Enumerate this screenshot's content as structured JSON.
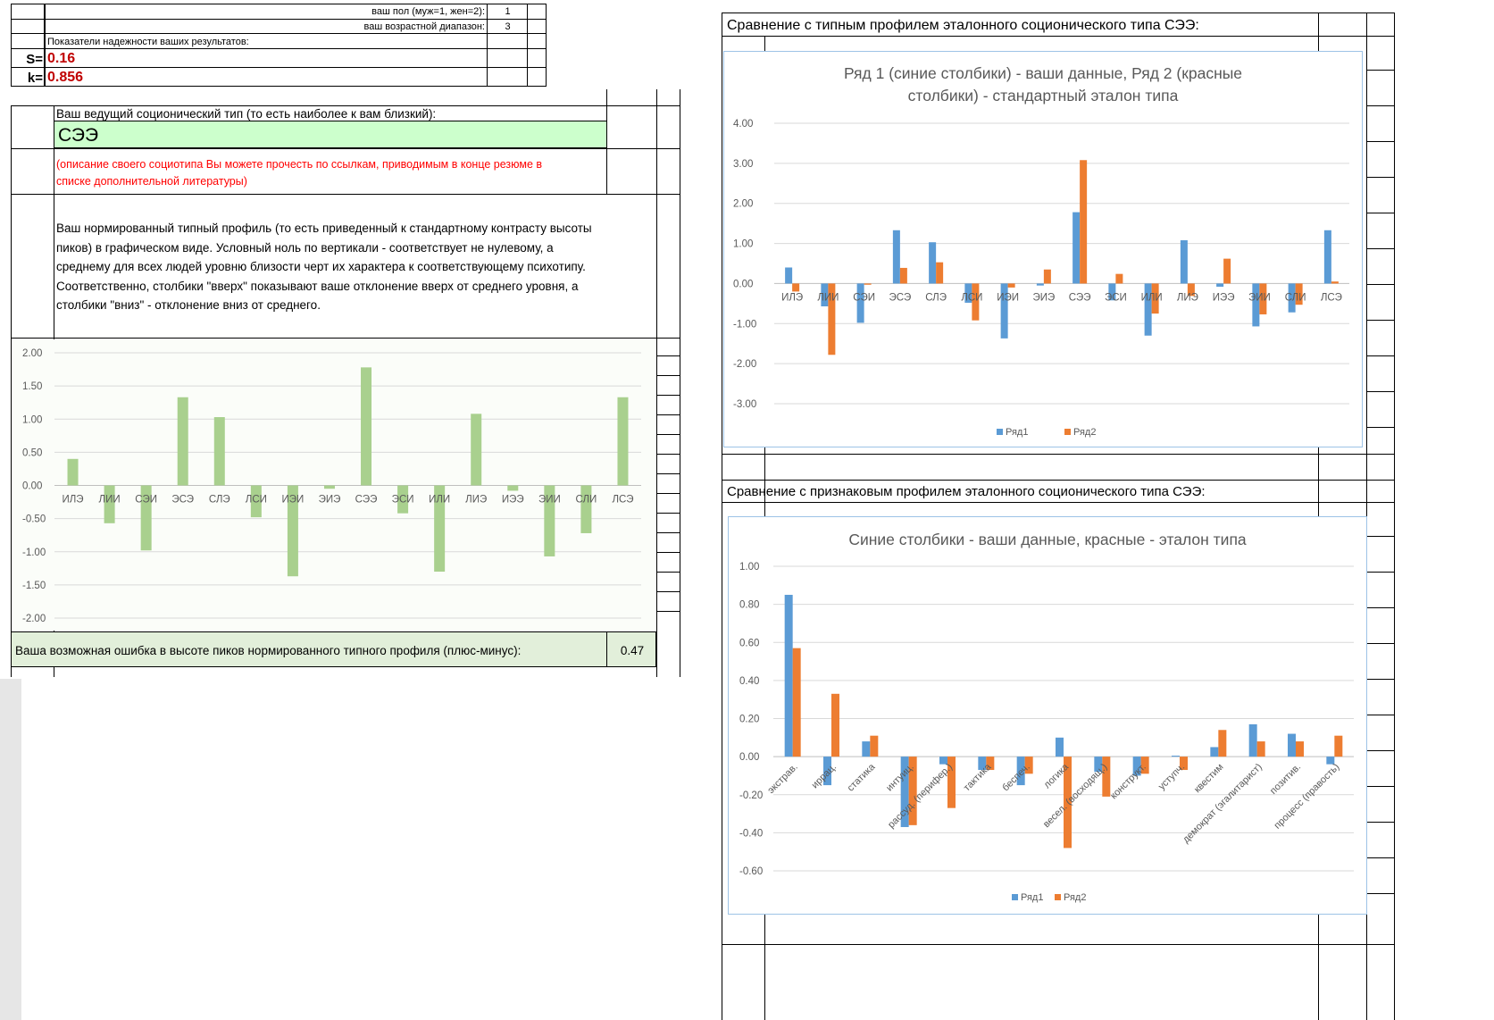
{
  "left_sheet": {
    "gender_label": "ваш пол (муж=1, жен=2):",
    "gender_value": "1",
    "age_label": "ваш возрастной диапазон:",
    "age_value": "3",
    "reliability_heading": "Показатели надежности ваших результатов:",
    "s_label": "S=",
    "s_value": "0.16",
    "k_label": "k=",
    "k_value": "0.856",
    "leading_type_label": "Ваш ведущий соционический тип (то есть наиболее к вам близкий):",
    "leading_type_value": "СЭЭ",
    "description_note_line1": "(описание своего социотипа Вы можете прочесть по ссылкам, приводимым в конце резюме в",
    "description_note_line2": "списке дополнительной литературы)",
    "profile_text": [
      "Ваш нормированный типный профиль (то есть приведенный к стандартному контрасту высоты",
      "пиков) в графическом виде. Условный ноль по вертикали - соответствует не нулевому, а",
      "среднему для всех людей уровню близости черт их характера к соответствующему психотипу.",
      "Соответственно, столбики \"вверх\" показывают ваше отклонение вверх от среднего уровня, а",
      "столбики \"вниз\" - отклонение вниз от среднего."
    ],
    "error_label": "Ваша возможная ошибка в высоте пиков нормированного типного профиля (плюс-минус):",
    "error_value": "0.47"
  },
  "right_sheet": {
    "typical_heading": "Сравнение с типным профилем эталонного соционического типа СЭЭ:",
    "feature_heading": "Сравнение с признаковым профилем эталонного соционического типа СЭЭ:"
  },
  "colors": {
    "green_bar": "#a9d08e",
    "blue": "#5b9bd5",
    "orange": "#ed7d31",
    "red_value": "#c00000",
    "red_note": "#ff0000",
    "type_fill": "#ccffcc",
    "error_fill": "#e2efda",
    "chart_border": "#9dc3e6"
  },
  "chart_data": [
    {
      "type": "bar",
      "title": "",
      "categories": [
        "ИЛЭ",
        "ЛИИ",
        "СЭИ",
        "ЭСЭ",
        "СЛЭ",
        "ЛСИ",
        "ИЭИ",
        "ЭИЭ",
        "СЭЭ",
        "ЭСИ",
        "ИЛИ",
        "ЛИЭ",
        "ИЭЭ",
        "ЭИИ",
        "СЛИ",
        "ЛСЭ"
      ],
      "series": [
        {
          "values": [
            0.4,
            -0.57,
            -0.98,
            1.33,
            1.03,
            -0.48,
            -1.37,
            -0.05,
            1.78,
            -0.42,
            -1.3,
            1.08,
            -0.08,
            -1.07,
            -0.72,
            1.33
          ]
        }
      ],
      "yticks": [
        "2.00",
        "1.50",
        "1.00",
        "0.50",
        "0.00",
        "-0.50",
        "-1.00",
        "-1.50",
        "-2.00"
      ],
      "ylim": [
        -2,
        2
      ],
      "grid": true,
      "legend": "none"
    },
    {
      "type": "bar",
      "title": "Ряд 1 (синие столбики) - ваши данные, Ряд 2 (красные столбики) - стандартный эталон типа",
      "title_lines": [
        "Ряд 1 (синие столбики) - ваши данные, Ряд 2 (красные",
        "столбики) - стандартный эталон типа"
      ],
      "categories": [
        "ИЛЭ",
        "ЛИИ",
        "СЭИ",
        "ЭСЭ",
        "СЛЭ",
        "ЛСИ",
        "ИЭИ",
        "ЭИЭ",
        "СЭЭ",
        "ЭСИ",
        "ИЛИ",
        "ЛИЭ",
        "ИЭЭ",
        "ЭИИ",
        "СЛИ",
        "ЛСЭ"
      ],
      "series": [
        {
          "name": "Ряд1",
          "values": [
            0.4,
            -0.57,
            -0.98,
            1.33,
            1.03,
            -0.48,
            -1.37,
            -0.05,
            1.78,
            -0.42,
            -1.3,
            1.08,
            -0.08,
            -1.07,
            -0.72,
            1.33
          ]
        },
        {
          "name": "Ряд2",
          "values": [
            -0.2,
            -1.78,
            -0.03,
            0.39,
            0.53,
            -0.92,
            -0.1,
            0.35,
            3.08,
            0.24,
            -0.75,
            -0.31,
            0.62,
            -0.77,
            -0.53,
            0.05
          ]
        }
      ],
      "yticks": [
        "4.00",
        "3.00",
        "2.00",
        "1.00",
        "0.00",
        "-1.00",
        "-2.00",
        "-3.00"
      ],
      "ylim": [
        -3,
        4
      ],
      "grid": true,
      "legend": "bottom"
    },
    {
      "type": "bar",
      "title": "Синие столбики - ваши данные, красные - эталон типа",
      "categories": [
        "экстрав.",
        "иррац.",
        "статика",
        "интуиц.",
        "рассуд. (перифер.)",
        "тактика",
        "беспеч.",
        "логика",
        "весел. (восходящ.)",
        "конструкт.",
        "уступч.",
        "квестим",
        "демократ (эгалитарист)",
        "позитив.",
        "процесс (правость)"
      ],
      "series": [
        {
          "name": "Ряд1",
          "values": [
            0.85,
            -0.15,
            0.08,
            -0.37,
            -0.04,
            -0.07,
            -0.15,
            0.1,
            -0.08,
            -0.1,
            0.005,
            0.05,
            0.17,
            0.12,
            -0.04
          ]
        },
        {
          "name": "Ряд2",
          "values": [
            0.57,
            0.33,
            0.11,
            -0.36,
            -0.27,
            -0.07,
            -0.09,
            -0.48,
            -0.21,
            -0.09,
            -0.07,
            0.14,
            0.08,
            0.08,
            0.11
          ]
        }
      ],
      "yticks": [
        "1.00",
        "0.80",
        "0.60",
        "0.40",
        "0.20",
        "0.00",
        "-0.20",
        "-0.40",
        "-0.60"
      ],
      "ylim": [
        -0.6,
        1.0
      ],
      "grid": true,
      "legend": "bottom"
    }
  ]
}
